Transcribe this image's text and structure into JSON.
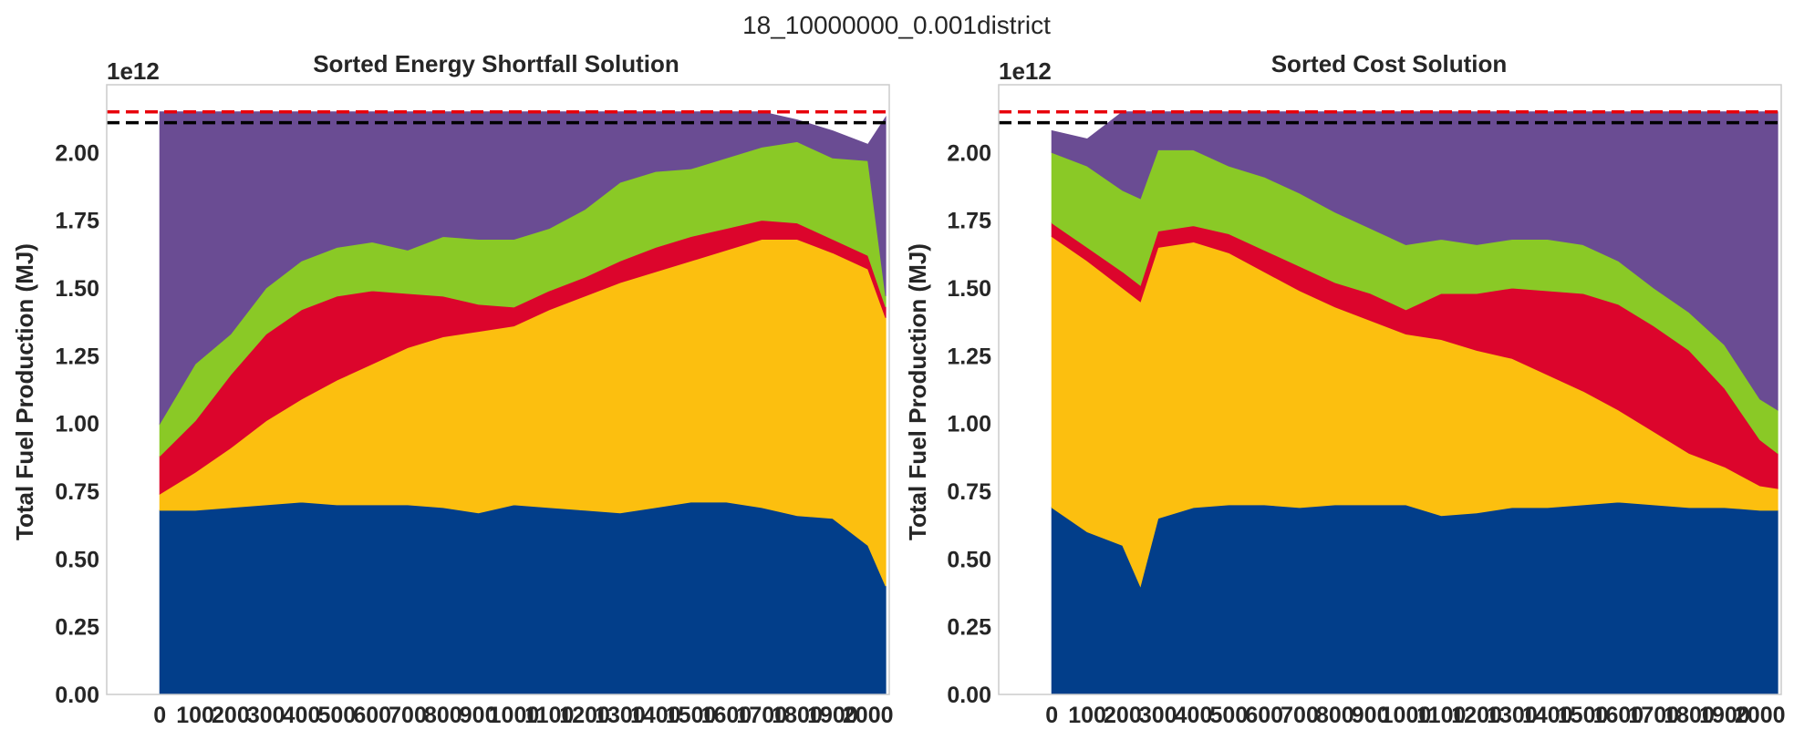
{
  "figure": {
    "suptitle": "18_10000000_0.001district"
  },
  "chart_data": [
    {
      "type": "area",
      "title": "Sorted Energy Shortfall Solution",
      "ylabel": "Total Fuel Production (MJ)",
      "y_offset_label": "1e12",
      "ylim": [
        0,
        2.25
      ],
      "xlim": [
        -150,
        2060
      ],
      "grid": false,
      "y_ticks": [
        "0.00",
        "0.25",
        "0.50",
        "0.75",
        "1.00",
        "1.25",
        "1.50",
        "1.75",
        "2.00"
      ],
      "x_ticks": [
        "0",
        "100",
        "200",
        "300",
        "400",
        "500",
        "600",
        "700",
        "800",
        "900",
        "1000",
        "1100",
        "1200",
        "1300",
        "1400",
        "1500",
        "1600",
        "1700",
        "1800",
        "1900",
        "2000"
      ],
      "x": [
        0,
        100,
        200,
        300,
        400,
        500,
        600,
        700,
        800,
        900,
        1000,
        1100,
        1200,
        1300,
        1400,
        1500,
        1600,
        1700,
        1800,
        1900,
        2000,
        2050
      ],
      "series": [
        {
          "color": "#023e8a",
          "values": [
            0.68,
            0.68,
            0.69,
            0.7,
            0.71,
            0.7,
            0.7,
            0.7,
            0.69,
            0.67,
            0.7,
            0.69,
            0.68,
            0.67,
            0.69,
            0.71,
            0.71,
            0.69,
            0.66,
            0.65,
            0.55,
            0.4
          ]
        },
        {
          "color": "#fcbf0f",
          "values": [
            0.06,
            0.14,
            0.22,
            0.31,
            0.38,
            0.46,
            0.52,
            0.58,
            0.63,
            0.67,
            0.66,
            0.73,
            0.79,
            0.85,
            0.87,
            0.89,
            0.93,
            0.99,
            1.02,
            0.98,
            1.02,
            0.99
          ]
        },
        {
          "color": "#dc052c",
          "values": [
            0.14,
            0.19,
            0.27,
            0.32,
            0.33,
            0.31,
            0.27,
            0.2,
            0.15,
            0.1,
            0.07,
            0.07,
            0.07,
            0.08,
            0.09,
            0.09,
            0.08,
            0.07,
            0.06,
            0.05,
            0.05,
            0.04
          ]
        },
        {
          "color": "#8ac926",
          "values": [
            0.12,
            0.21,
            0.15,
            0.17,
            0.18,
            0.18,
            0.18,
            0.16,
            0.22,
            0.24,
            0.25,
            0.23,
            0.25,
            0.29,
            0.28,
            0.25,
            0.26,
            0.27,
            0.3,
            0.3,
            0.35,
            0.04
          ]
        },
        {
          "color": "#6a4c93",
          "values": [
            1.15,
            0.93,
            0.82,
            0.65,
            0.55,
            0.5,
            0.48,
            0.51,
            0.46,
            0.47,
            0.47,
            0.43,
            0.36,
            0.26,
            0.22,
            0.21,
            0.17,
            0.13,
            0.08,
            0.1,
            0.06,
            0.66
          ]
        }
      ],
      "hlines": [
        {
          "y": 2.15,
          "color": "#e8000b",
          "style": "dashed"
        },
        {
          "y": 2.11,
          "color": "#000000",
          "style": "dashed"
        }
      ]
    },
    {
      "type": "area",
      "title": "Sorted Cost Solution",
      "ylabel": "Total Fuel Production (MJ)",
      "y_offset_label": "1e12",
      "ylim": [
        0,
        2.25
      ],
      "xlim": [
        -150,
        2060
      ],
      "grid": false,
      "y_ticks": [
        "0.00",
        "0.25",
        "0.50",
        "0.75",
        "1.00",
        "1.25",
        "1.50",
        "1.75",
        "2.00"
      ],
      "x_ticks": [
        "0",
        "100",
        "200",
        "300",
        "400",
        "500",
        "600",
        "700",
        "800",
        "900",
        "1000",
        "1100",
        "1200",
        "1300",
        "1400",
        "1500",
        "1600",
        "1700",
        "1800",
        "1900",
        "2000"
      ],
      "x": [
        0,
        100,
        200,
        250,
        300,
        400,
        500,
        600,
        700,
        800,
        900,
        1000,
        1100,
        1200,
        1300,
        1400,
        1500,
        1600,
        1700,
        1800,
        1900,
        2000,
        2050
      ],
      "series": [
        {
          "color": "#023e8a",
          "values": [
            0.69,
            0.6,
            0.55,
            0.4,
            0.65,
            0.69,
            0.7,
            0.7,
            0.69,
            0.7,
            0.7,
            0.7,
            0.66,
            0.67,
            0.69,
            0.69,
            0.7,
            0.71,
            0.7,
            0.69,
            0.69,
            0.68,
            0.68
          ]
        },
        {
          "color": "#fcbf0f",
          "values": [
            1.0,
            1.0,
            0.95,
            1.05,
            1.0,
            0.98,
            0.93,
            0.86,
            0.8,
            0.73,
            0.68,
            0.63,
            0.65,
            0.6,
            0.55,
            0.49,
            0.42,
            0.34,
            0.27,
            0.2,
            0.15,
            0.09,
            0.08
          ]
        },
        {
          "color": "#dc052c",
          "values": [
            0.05,
            0.05,
            0.06,
            0.06,
            0.06,
            0.06,
            0.07,
            0.08,
            0.09,
            0.09,
            0.1,
            0.09,
            0.17,
            0.21,
            0.26,
            0.31,
            0.36,
            0.39,
            0.39,
            0.38,
            0.29,
            0.17,
            0.13
          ]
        },
        {
          "color": "#8ac926",
          "values": [
            0.26,
            0.3,
            0.3,
            0.32,
            0.3,
            0.28,
            0.25,
            0.27,
            0.27,
            0.26,
            0.24,
            0.24,
            0.2,
            0.18,
            0.18,
            0.19,
            0.18,
            0.16,
            0.14,
            0.14,
            0.16,
            0.15,
            0.16
          ]
        },
        {
          "color": "#6a4c93",
          "values": [
            0.08,
            0.1,
            0.29,
            0.32,
            0.14,
            0.14,
            0.2,
            0.24,
            0.3,
            0.37,
            0.43,
            0.49,
            0.47,
            0.49,
            0.47,
            0.47,
            0.49,
            0.55,
            0.65,
            0.74,
            0.86,
            1.06,
            1.1
          ]
        }
      ],
      "hlines": [
        {
          "y": 2.15,
          "color": "#e8000b",
          "style": "dashed"
        },
        {
          "y": 2.11,
          "color": "#000000",
          "style": "dashed"
        }
      ]
    }
  ]
}
